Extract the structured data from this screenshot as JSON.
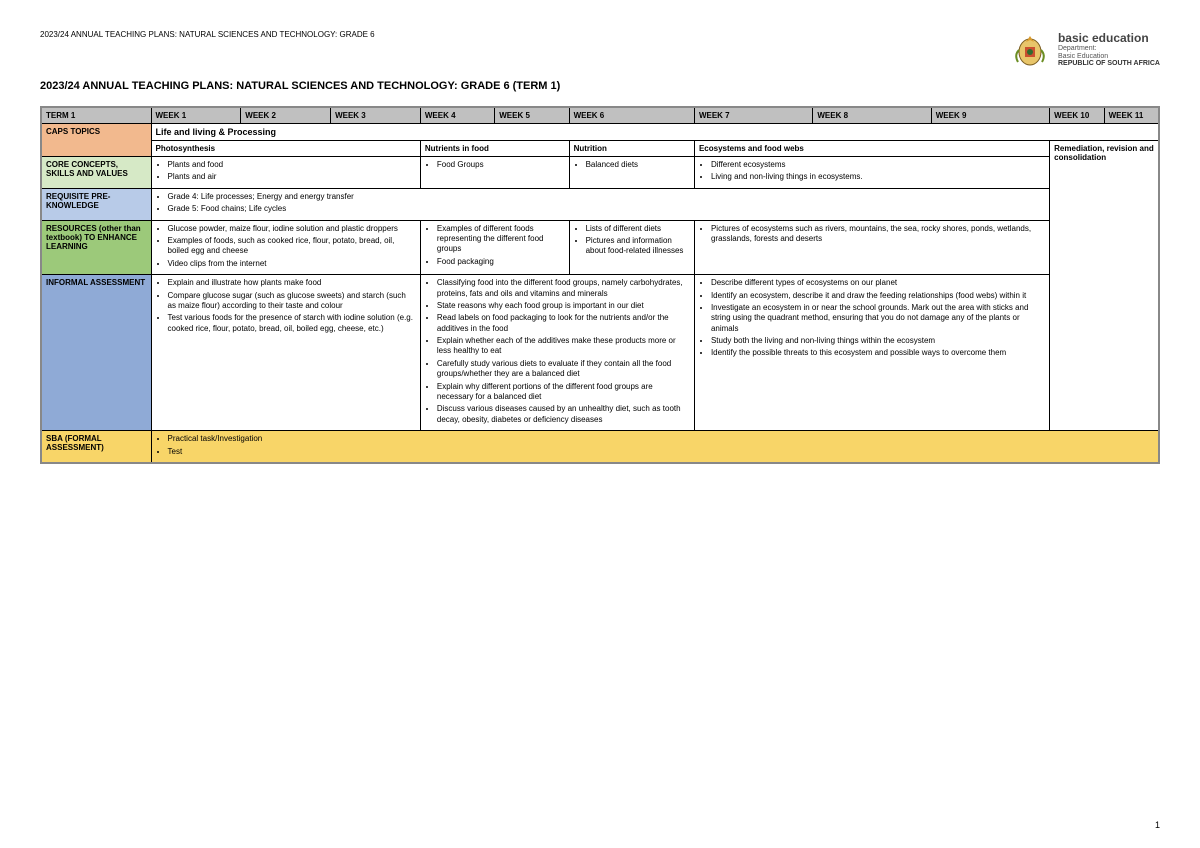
{
  "header_small": "2023/24 ANNUAL TEACHING PLANS: NATURAL SCIENCES AND TECHNOLOGY: GRADE 6",
  "title": "2023/24 ANNUAL TEACHING PLANS: NATURAL SCIENCES AND TECHNOLOGY: GRADE 6 (TERM 1)",
  "logo": {
    "main": "basic education",
    "sub1": "Department:",
    "sub2": "Basic Education",
    "sub3": "REPUBLIC OF SOUTH AFRICA"
  },
  "weeks": {
    "term": "TERM 1",
    "w1": "WEEK 1",
    "w2": "WEEK 2",
    "w3": "WEEK 3",
    "w4": "WEEK 4",
    "w5": "WEEK 5",
    "w6": "WEEK 6",
    "w7": "WEEK 7",
    "w8": "WEEK 8",
    "w9": "WEEK 9",
    "w10": "WEEK 10",
    "w11": "WEEK 11"
  },
  "rows": {
    "caps_label": "CAPS TOPICS",
    "caps_topic": "Life and living & Processing",
    "subtopics": {
      "a": "Photosynthesis",
      "b": "Nutrients in food",
      "c": "Nutrition",
      "d": "Ecosystems and food webs",
      "e": "Remediation, revision and consolidation"
    },
    "core_label": "CORE CONCEPTS, SKILLS AND VALUES",
    "core": {
      "a": [
        "Plants and food",
        "Plants and air"
      ],
      "b": [
        "Food Groups"
      ],
      "c": [
        "Balanced diets"
      ],
      "d": [
        "Different ecosystems",
        "Living and non-living things in ecosystems."
      ]
    },
    "prereq_label": "REQUISITE PRE-KNOWLEDGE",
    "prereq": [
      "Grade 4: Life processes; Energy and energy transfer",
      "Grade 5: Food chains; Life cycles"
    ],
    "resources_label": "RESOURCES (other than textbook) TO ENHANCE LEARNING",
    "resources": {
      "a": [
        "Glucose powder, maize flour, iodine solution and plastic droppers",
        "Examples of foods, such as cooked rice, flour, potato, bread, oil, boiled egg and cheese",
        "Video clips from the internet"
      ],
      "b": [
        "Examples of different foods representing the different food groups",
        "Food packaging"
      ],
      "c": [
        "Lists of different diets",
        "Pictures and information about food-related illnesses"
      ],
      "d": [
        "Pictures of ecosystems such as rivers, mountains, the sea, rocky shores, ponds, wetlands, grasslands, forests and deserts"
      ]
    },
    "informal_label": "INFORMAL ASSESSMENT",
    "informal": {
      "a": [
        "Explain and illustrate how plants make food",
        "Compare glucose sugar (such as glucose sweets) and starch (such as maize flour) according to their taste and colour",
        "Test various foods for the presence of starch with iodine solution (e.g. cooked rice, flour, potato, bread, oil, boiled egg, cheese, etc.)"
      ],
      "b": [
        "Classifying food into the different food groups, namely carbohydrates, proteins, fats and oils and vitamins and minerals",
        "State reasons why each food group is important in our diet",
        "Read labels on food packaging to look for the nutrients and/or the additives in the food",
        "Explain whether each of the additives make these products more or less healthy to eat",
        "Carefully study various diets to evaluate if they contain all the food groups/whether they are a balanced diet",
        "Explain why different portions of the different food groups are necessary for a balanced diet",
        "Discuss various diseases caused by an unhealthy diet, such as tooth decay, obesity, diabetes or deficiency diseases"
      ],
      "d": [
        "Describe different types of ecosystems on our planet",
        "Identify an ecosystem, describe it and draw the feeding relationships (food webs) within it",
        "Investigate an ecosystem in or near the school grounds. Mark out the area with sticks and string using the quadrant method, ensuring that you do not damage any of the plants or animals",
        "Study both the living and non-living things within the ecosystem",
        "Identify the possible threats to this ecosystem and possible ways to overcome them"
      ]
    },
    "sba_label": "SBA (FORMAL ASSESSMENT)",
    "sba": [
      "Practical task/Investigation",
      "Test"
    ]
  },
  "page_num": "1",
  "colors": {
    "caps": "#f2b98e",
    "core": "#d6e9c6",
    "prereq": "#b8cbe8",
    "resources": "#9cc97a",
    "informal": "#8faad6",
    "sba": "#f8d568",
    "header_grey": "#c0c0c0"
  }
}
